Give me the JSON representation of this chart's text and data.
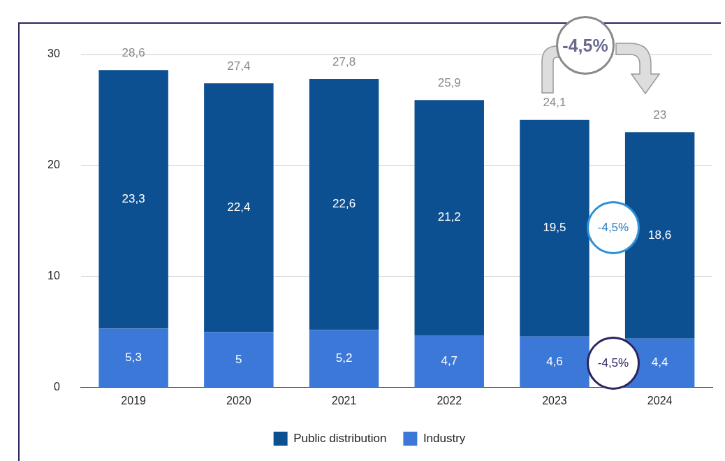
{
  "chart_data": {
    "type": "bar",
    "stacked": true,
    "categories": [
      "2019",
      "2020",
      "2021",
      "2022",
      "2023",
      "2024"
    ],
    "series": [
      {
        "name": "Industry",
        "color": "#3c78d8",
        "values": [
          5.3,
          5,
          5.2,
          4.7,
          4.6,
          4.4
        ],
        "value_labels": [
          "5,3",
          "5",
          "5,2",
          "4,7",
          "4,6",
          "4,4"
        ]
      },
      {
        "name": "Public distribution",
        "color": "#0d5091",
        "values": [
          23.3,
          22.4,
          22.6,
          21.2,
          19.5,
          18.6
        ],
        "value_labels": [
          "23,3",
          "22,4",
          "22,6",
          "21,2",
          "19,5",
          "18,6"
        ]
      }
    ],
    "totals": [
      "28,6",
      "27,4",
      "27,8",
      "25,9",
      "24,1",
      "23"
    ],
    "ylim": [
      0,
      30
    ],
    "yticks": [
      0,
      10,
      20,
      30
    ],
    "grid": "y",
    "legend": "bottom",
    "annotations": [
      "-4,5%",
      "-4,5%",
      "-4,5%"
    ]
  }
}
